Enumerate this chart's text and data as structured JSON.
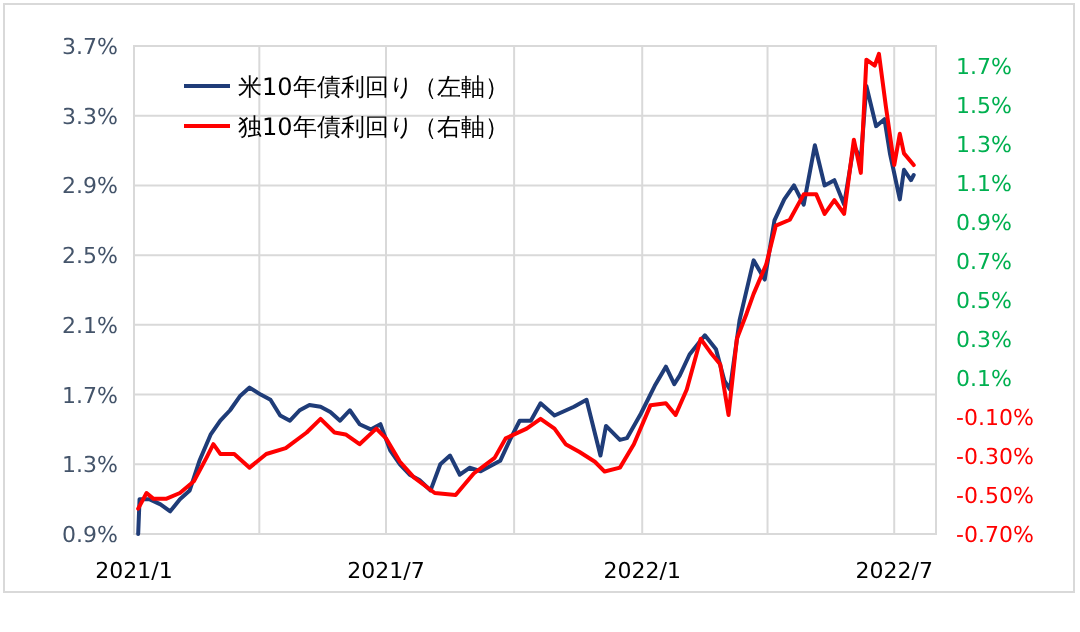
{
  "chart_data": {
    "type": "line",
    "legend": "top left",
    "grid": true,
    "line_style": "solid",
    "marker": "none",
    "xlim": [
      "2021-01-01",
      "2022-07-31"
    ],
    "xticks": [
      {
        "value": "2021-01",
        "label": "2021/1"
      },
      {
        "value": "2021-04",
        "label": null
      },
      {
        "value": "2021-07",
        "label": "2021/7"
      },
      {
        "value": "2021-10",
        "label": null
      },
      {
        "value": "2022-01",
        "label": "2022/1"
      },
      {
        "value": "2022-04",
        "label": null
      },
      {
        "value": "2022-07",
        "label": "2022/7"
      }
    ],
    "ylim": [
      0.9,
      3.7
    ],
    "yticks": [
      {
        "value": 0.9,
        "label": "0.9%"
      },
      {
        "value": 1.3,
        "label": "1.3%"
      },
      {
        "value": 1.7,
        "label": "1.7%"
      },
      {
        "value": 2.1,
        "label": "2.1%"
      },
      {
        "value": 2.5,
        "label": "2.5%"
      },
      {
        "value": 2.9,
        "label": "2.9%"
      },
      {
        "value": 3.3,
        "label": "3.3%"
      },
      {
        "value": 3.7,
        "label": "3.7%"
      }
    ],
    "y2lim": [
      -0.7,
      1.8
    ],
    "y2ticks": [
      {
        "value": -0.7,
        "label": "-0.70%"
      },
      {
        "value": -0.5,
        "label": "-0.50%"
      },
      {
        "value": -0.3,
        "label": "-0.30%"
      },
      {
        "value": -0.1,
        "label": "-0.10%"
      },
      {
        "value": 0.1,
        "label": "0.1%"
      },
      {
        "value": 0.3,
        "label": "0.3%"
      },
      {
        "value": 0.5,
        "label": "0.5%"
      },
      {
        "value": 0.7,
        "label": "0.7%"
      },
      {
        "value": 0.9,
        "label": "0.9%"
      },
      {
        "value": 1.1,
        "label": "1.1%"
      },
      {
        "value": 1.3,
        "label": "1.3%"
      },
      {
        "value": 1.5,
        "label": "1.5%"
      },
      {
        "value": 1.7,
        "label": "1.7%"
      }
    ],
    "series": [
      {
        "name": "米10年債利回り（左軸）",
        "color": "#1f3c78",
        "axis": "y",
        "x": [
          "2021-01-04",
          "2021-01-05",
          "2021-01-12",
          "2021-01-20",
          "2021-01-27",
          "2021-02-03",
          "2021-02-10",
          "2021-02-17",
          "2021-02-25",
          "2021-03-04",
          "2021-03-11",
          "2021-03-18",
          "2021-03-25",
          "2021-04-02",
          "2021-04-09",
          "2021-04-16",
          "2021-04-23",
          "2021-04-30",
          "2021-05-07",
          "2021-05-15",
          "2021-05-22",
          "2021-05-29",
          "2021-06-05",
          "2021-06-12",
          "2021-06-20",
          "2021-06-27",
          "2021-07-04",
          "2021-07-11",
          "2021-07-18",
          "2021-07-25",
          "2021-08-02",
          "2021-08-09",
          "2021-08-16",
          "2021-08-23",
          "2021-08-30",
          "2021-09-07",
          "2021-09-14",
          "2021-09-21",
          "2021-09-28",
          "2021-10-05",
          "2021-10-13",
          "2021-10-20",
          "2021-10-30",
          "2021-11-13",
          "2021-11-22",
          "2021-12-02",
          "2021-12-06",
          "2021-12-16",
          "2021-12-21",
          "2021-12-31",
          "2022-01-10",
          "2022-01-18",
          "2022-01-24",
          "2022-01-28",
          "2022-02-04",
          "2022-02-15",
          "2022-02-23",
          "2022-03-01",
          "2022-03-05",
          "2022-03-12",
          "2022-03-22",
          "2022-03-30",
          "2022-04-06",
          "2022-04-13",
          "2022-04-20",
          "2022-04-27",
          "2022-05-05",
          "2022-05-12",
          "2022-05-19",
          "2022-05-26",
          "2022-06-02",
          "2022-06-07",
          "2022-06-11",
          "2022-06-18",
          "2022-06-24",
          "2022-06-28",
          "2022-07-01",
          "2022-07-05",
          "2022-07-08",
          "2022-07-13",
          "2022-07-15"
        ],
        "values": [
          0.9,
          1.1,
          1.1,
          1.07,
          1.03,
          1.1,
          1.15,
          1.32,
          1.47,
          1.55,
          1.61,
          1.69,
          1.74,
          1.7,
          1.67,
          1.58,
          1.55,
          1.61,
          1.64,
          1.63,
          1.6,
          1.55,
          1.61,
          1.53,
          1.5,
          1.53,
          1.38,
          1.3,
          1.24,
          1.21,
          1.15,
          1.3,
          1.35,
          1.24,
          1.28,
          1.26,
          1.29,
          1.32,
          1.44,
          1.55,
          1.55,
          1.65,
          1.58,
          1.63,
          1.67,
          1.35,
          1.52,
          1.44,
          1.45,
          1.59,
          1.75,
          1.86,
          1.76,
          1.81,
          1.93,
          2.04,
          1.96,
          1.78,
          1.73,
          2.13,
          2.47,
          2.36,
          2.7,
          2.82,
          2.9,
          2.79,
          3.13,
          2.9,
          2.93,
          2.79,
          3.13,
          3.05,
          3.47,
          3.24,
          3.28,
          3.08,
          2.97,
          2.82,
          2.99,
          2.93,
          2.96
        ]
      },
      {
        "name": "独10年債利回り（右軸）",
        "color": "#ff0000",
        "axis": "y2",
        "x": [
          "2021-01-04",
          "2021-01-10",
          "2021-01-15",
          "2021-01-24",
          "2021-02-03",
          "2021-02-13",
          "2021-02-22",
          "2021-02-27",
          "2021-03-04",
          "2021-03-14",
          "2021-03-25",
          "2021-04-06",
          "2021-04-20",
          "2021-05-05",
          "2021-05-15",
          "2021-05-25",
          "2021-06-02",
          "2021-06-12",
          "2021-06-24",
          "2021-07-01",
          "2021-07-11",
          "2021-07-21",
          "2021-08-05",
          "2021-08-20",
          "2021-09-02",
          "2021-09-17",
          "2021-09-25",
          "2021-10-10",
          "2021-10-20",
          "2021-10-30",
          "2021-11-07",
          "2021-11-17",
          "2021-11-28",
          "2021-12-05",
          "2021-12-16",
          "2021-12-26",
          "2022-01-07",
          "2022-01-18",
          "2022-01-25",
          "2022-02-02",
          "2022-02-12",
          "2022-02-19",
          "2022-02-26",
          "2022-03-04",
          "2022-03-10",
          "2022-03-17",
          "2022-03-22",
          "2022-03-31",
          "2022-04-07",
          "2022-04-17",
          "2022-04-27",
          "2022-05-06",
          "2022-05-12",
          "2022-05-19",
          "2022-05-26",
          "2022-06-02",
          "2022-06-07",
          "2022-06-11",
          "2022-06-17",
          "2022-06-20",
          "2022-06-25",
          "2022-07-01",
          "2022-07-05",
          "2022-07-08",
          "2022-07-15"
        ],
        "values": [
          -0.57,
          -0.49,
          -0.52,
          -0.52,
          -0.49,
          -0.43,
          -0.31,
          -0.24,
          -0.29,
          -0.29,
          -0.36,
          -0.29,
          -0.26,
          -0.18,
          -0.11,
          -0.18,
          -0.19,
          -0.24,
          -0.16,
          -0.21,
          -0.33,
          -0.41,
          -0.49,
          -0.5,
          -0.39,
          -0.31,
          -0.21,
          -0.16,
          -0.11,
          -0.16,
          -0.24,
          -0.28,
          -0.33,
          -0.38,
          -0.36,
          -0.24,
          -0.04,
          -0.03,
          -0.09,
          0.04,
          0.3,
          0.23,
          0.17,
          -0.09,
          0.3,
          0.43,
          0.53,
          0.68,
          0.88,
          0.91,
          1.04,
          1.04,
          0.94,
          1.01,
          0.94,
          1.32,
          1.15,
          1.73,
          1.7,
          1.76,
          1.49,
          1.19,
          1.35,
          1.25,
          1.19
        ]
      }
    ]
  }
}
